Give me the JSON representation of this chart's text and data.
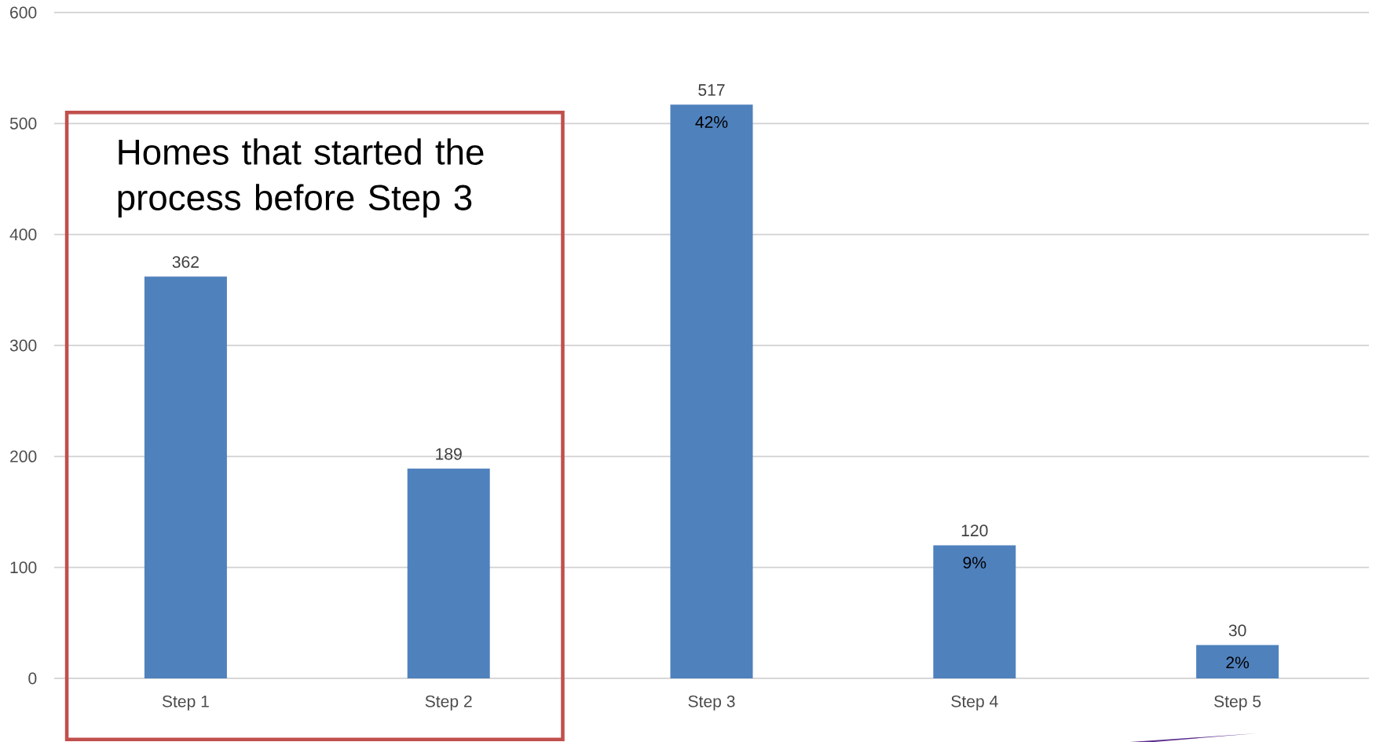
{
  "chart_data": {
    "type": "bar",
    "categories": [
      "Step 1",
      "Step 2",
      "Step 3",
      "Step 4",
      "Step 5"
    ],
    "values": [
      362,
      189,
      517,
      120,
      30
    ],
    "color": "#4f81bd",
    "ylim": [
      0,
      600
    ],
    "yticks": [
      0,
      100,
      200,
      300,
      400,
      500,
      600
    ],
    "grid": "y",
    "data_labels": true,
    "annotations": [
      "Homes that started the process before Step 3",
      {
        "text": "42%",
        "x": "Step 3",
        "y": 517
      },
      {
        "text": "9%",
        "x": "Step 4",
        "y": 120
      },
      {
        "text": "2%",
        "x": "Step 5",
        "y": 30
      }
    ]
  }
}
